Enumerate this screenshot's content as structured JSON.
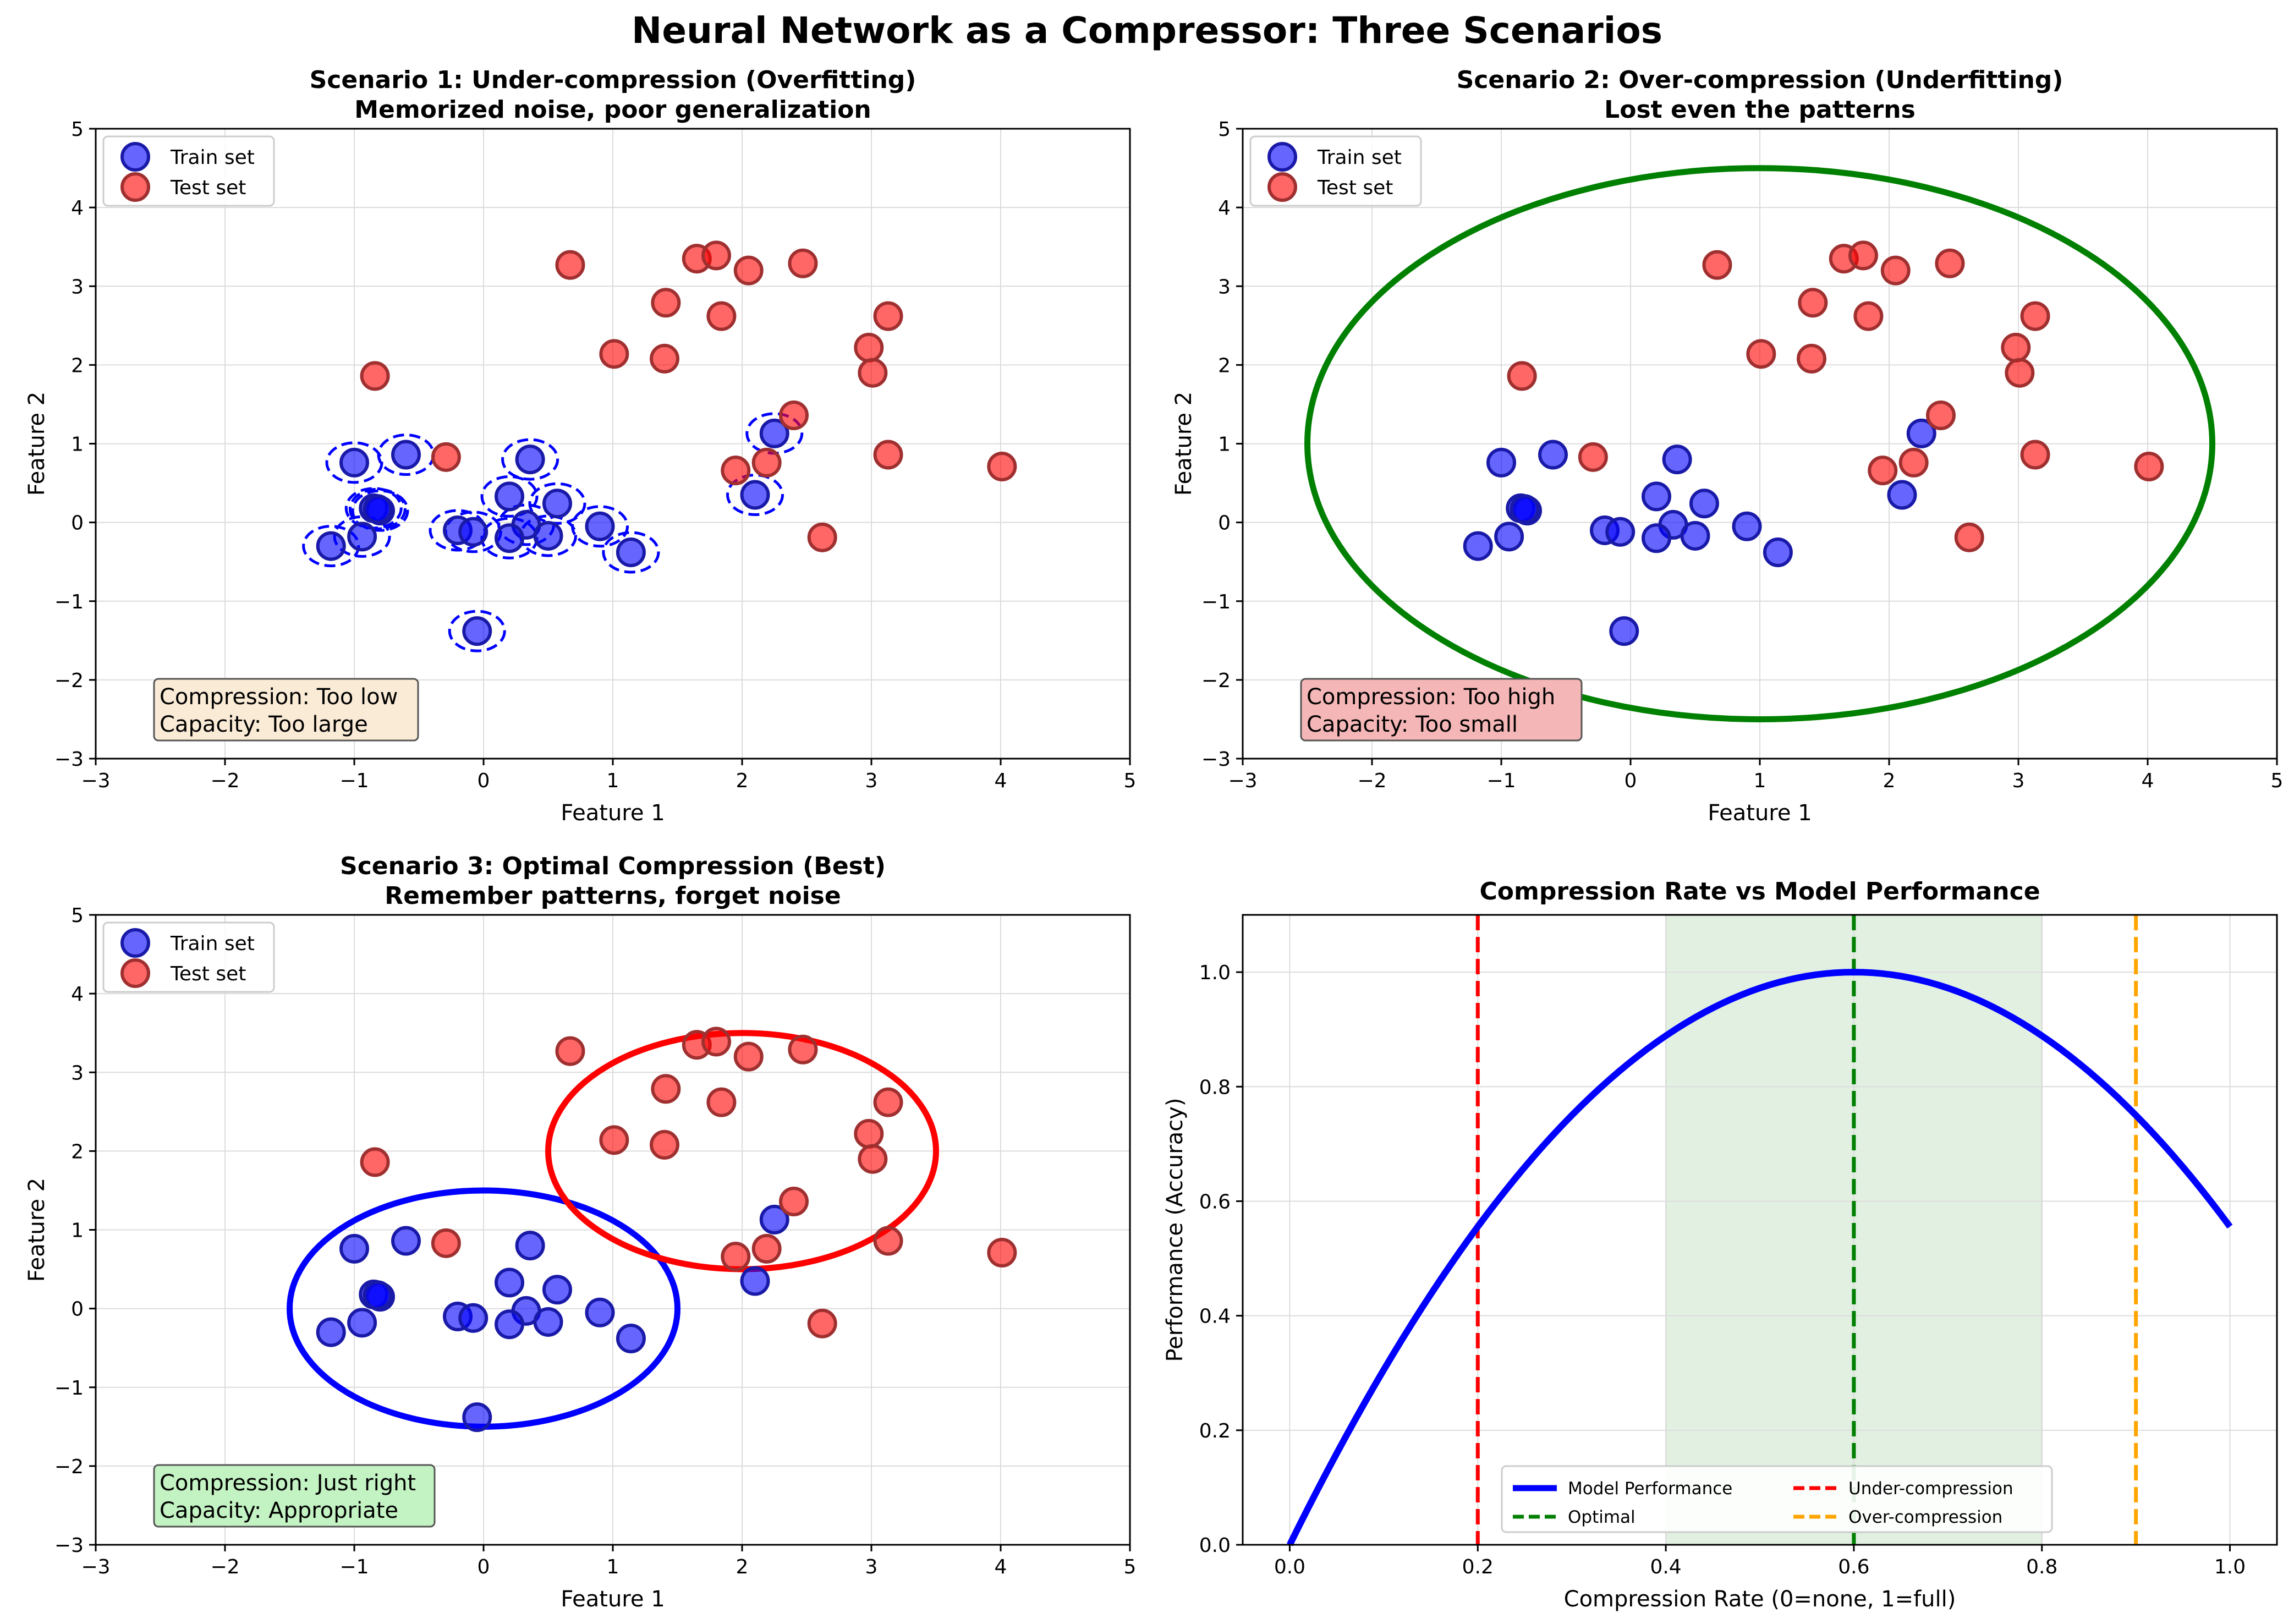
{
  "figure_title": "Neural Network as a Compressor: Three Scenarios",
  "colors": {
    "train": "#0000ff",
    "test": "#ff0000",
    "performance": "#0000ff",
    "under": "#ff0000",
    "optimal": "#008000",
    "over": "#ffa500",
    "box_under": "#faebd7",
    "box_over": "#f4b6b6",
    "box_optimal": "#c3f2c3",
    "shade": "#d6ead6"
  },
  "chart_data": [
    {
      "id": "s1",
      "type": "scatter",
      "title": "Scenario 1: Under-compression (Overfitting)",
      "subtitle": "Memorized noise, poor generalization",
      "xlabel": "Feature 1",
      "ylabel": "Feature 2",
      "xlim": [
        -3,
        5
      ],
      "ylim": [
        -3,
        5
      ],
      "xticks": [
        "−3",
        "−2",
        "−1",
        "0",
        "1",
        "2",
        "3",
        "4",
        "5"
      ],
      "yticks": [
        "−3",
        "−2",
        "−1",
        "0",
        "1",
        "2",
        "3",
        "4",
        "5"
      ],
      "grid": true,
      "legend": [
        "Train set",
        "Test set"
      ],
      "legend_position": "top-left",
      "annotation": [
        "Compression: Too low",
        "Capacity: Too large"
      ],
      "annotation_color": "#faebd7",
      "shapes_kind": "per-point small dashed ellipses around each train point",
      "train": [
        [
          -1.0,
          0.76
        ],
        [
          -0.6,
          0.86
        ],
        [
          0.36,
          0.8
        ],
        [
          -0.85,
          0.18
        ],
        [
          -0.8,
          0.15
        ],
        [
          0.2,
          0.33
        ],
        [
          0.57,
          0.24
        ],
        [
          -0.94,
          -0.18
        ],
        [
          -0.2,
          -0.1
        ],
        [
          -0.08,
          -0.12
        ],
        [
          0.33,
          -0.03
        ],
        [
          -1.18,
          -0.3
        ],
        [
          0.2,
          -0.2
        ],
        [
          0.5,
          -0.17
        ],
        [
          0.9,
          -0.05
        ],
        [
          1.14,
          -0.38
        ],
        [
          -0.05,
          -1.38
        ],
        [
          2.25,
          1.13
        ],
        [
          2.1,
          0.35
        ],
        [
          -0.82,
          0.17
        ]
      ],
      "test": [
        [
          -0.84,
          1.86
        ],
        [
          -0.29,
          0.83
        ],
        [
          0.67,
          3.27
        ],
        [
          1.01,
          2.14
        ],
        [
          1.4,
          2.08
        ],
        [
          1.41,
          2.79
        ],
        [
          1.65,
          3.35
        ],
        [
          1.8,
          3.39
        ],
        [
          1.84,
          2.62
        ],
        [
          1.95,
          0.66
        ],
        [
          2.05,
          3.2
        ],
        [
          2.19,
          0.76
        ],
        [
          2.4,
          1.36
        ],
        [
          2.47,
          3.29
        ],
        [
          2.62,
          -0.19
        ],
        [
          2.98,
          2.22
        ],
        [
          3.01,
          1.9
        ],
        [
          3.13,
          2.62
        ],
        [
          3.13,
          0.86
        ],
        [
          4.01,
          0.71
        ]
      ]
    },
    {
      "id": "s2",
      "type": "scatter",
      "title": "Scenario 2: Over-compression (Underfitting)",
      "subtitle": "Lost even the patterns",
      "xlabel": "Feature 1",
      "ylabel": "Feature 2",
      "xlim": [
        -3,
        5
      ],
      "ylim": [
        -3,
        5
      ],
      "xticks": [
        "−3",
        "−2",
        "−1",
        "0",
        "1",
        "2",
        "3",
        "4",
        "5"
      ],
      "yticks": [
        "−3",
        "−2",
        "−1",
        "0",
        "1",
        "2",
        "3",
        "4",
        "5"
      ],
      "grid": true,
      "legend": [
        "Train set",
        "Test set"
      ],
      "legend_position": "top-left",
      "annotation": [
        "Compression: Too high",
        "Capacity: Too small"
      ],
      "annotation_color": "#f4b6b6",
      "ellipses": [
        {
          "center": [
            1,
            1
          ],
          "radii": [
            3.5,
            3.5
          ],
          "color": "#008000"
        }
      ]
    },
    {
      "id": "s3",
      "type": "scatter",
      "title": "Scenario 3: Optimal Compression (Best)",
      "subtitle": "Remember patterns, forget noise",
      "xlabel": "Feature 1",
      "ylabel": "Feature 2",
      "xlim": [
        -3,
        5
      ],
      "ylim": [
        -3,
        5
      ],
      "xticks": [
        "−3",
        "−2",
        "−1",
        "0",
        "1",
        "2",
        "3",
        "4",
        "5"
      ],
      "yticks": [
        "−3",
        "−2",
        "−1",
        "0",
        "1",
        "2",
        "3",
        "4",
        "5"
      ],
      "grid": true,
      "legend": [
        "Train set",
        "Test set"
      ],
      "legend_position": "top-left",
      "annotation": [
        "Compression: Just right",
        "Capacity: Appropriate"
      ],
      "annotation_color": "#c3f2c3",
      "ellipses": [
        {
          "center": [
            0,
            0
          ],
          "radii": [
            1.5,
            1.5
          ],
          "color": "#0000ff"
        },
        {
          "center": [
            2,
            2
          ],
          "radii": [
            1.5,
            1.5
          ],
          "color": "#ff0000"
        }
      ]
    },
    {
      "id": "s4",
      "type": "line",
      "title": "Compression Rate vs Model Performance",
      "xlabel": "Compression Rate (0=none, 1=full)",
      "ylabel": "Performance (Accuracy)",
      "xlim": [
        -0.05,
        1.05
      ],
      "ylim": [
        0,
        1.1
      ],
      "xticks": [
        "0.0",
        "0.2",
        "0.4",
        "0.6",
        "0.8",
        "1.0"
      ],
      "yticks": [
        "0.0",
        "0.2",
        "0.4",
        "0.6",
        "0.8",
        "1.0"
      ],
      "grid": true,
      "series": [
        {
          "name": "Model Performance",
          "x": [
            0.0,
            0.05,
            0.1,
            0.15,
            0.2,
            0.25,
            0.3,
            0.35,
            0.4,
            0.45,
            0.5,
            0.55,
            0.6,
            0.65,
            0.7,
            0.75,
            0.8,
            0.85,
            0.9,
            0.95,
            1.0
          ],
          "y": [
            0.0,
            0.153,
            0.292,
            0.417,
            0.556,
            0.66,
            0.75,
            0.826,
            0.889,
            0.938,
            0.972,
            0.993,
            1.0,
            0.993,
            0.972,
            0.938,
            0.889,
            0.826,
            0.75,
            0.66,
            0.556
          ]
        }
      ],
      "vlines": [
        {
          "name": "Under-compression",
          "x": 0.2,
          "color": "#ff0000"
        },
        {
          "name": "Optimal",
          "x": 0.6,
          "color": "#008000"
        },
        {
          "name": "Over-compression",
          "x": 0.9,
          "color": "#ffa500"
        }
      ],
      "shaded_region": [
        0.4,
        0.8
      ],
      "legend_position": "lower-center",
      "legend_order": [
        "Model Performance",
        "Optimal",
        "Under-compression",
        "Over-compression"
      ]
    }
  ]
}
